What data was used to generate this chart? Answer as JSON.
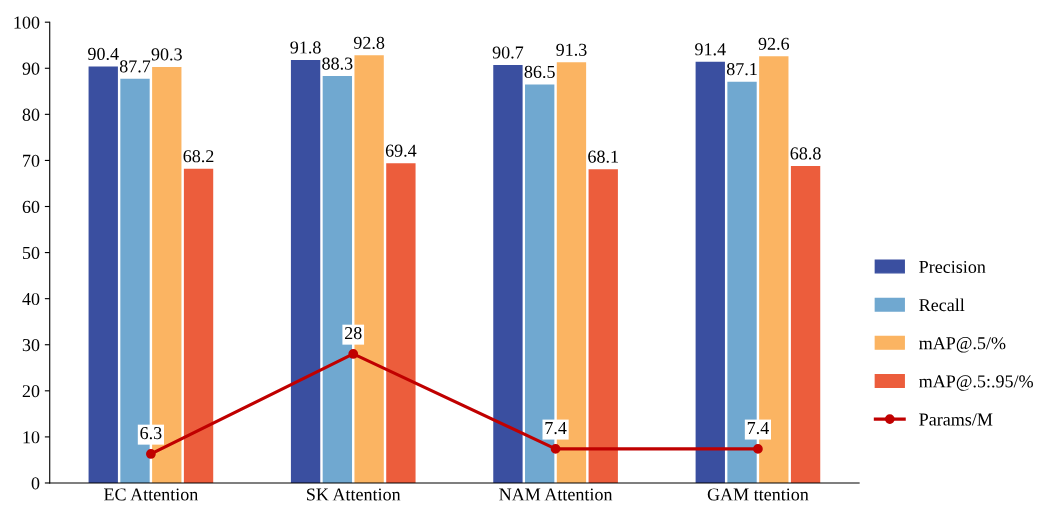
{
  "chart_data": {
    "type": "bar",
    "categories": [
      "EC Attention",
      "SK Attention",
      "NAM Attention",
      "GAM ttention"
    ],
    "series": [
      {
        "name": "Precision",
        "color": "#3a4fa0",
        "values": [
          90.4,
          91.8,
          90.7,
          91.4
        ]
      },
      {
        "name": "Recall",
        "color": "#70a8d0",
        "values": [
          87.7,
          88.3,
          86.5,
          87.1
        ]
      },
      {
        "name": "mAP@.5/%",
        "color": "#fbb462",
        "values": [
          90.3,
          92.8,
          91.3,
          92.6
        ]
      },
      {
        "name": "mAP@.5:.95/%",
        "color": "#ec5d3c",
        "values": [
          68.2,
          69.4,
          68.1,
          68.8
        ]
      },
      {
        "name": "Params/M",
        "type": "line",
        "color": "#c00000",
        "marker": "circle",
        "values": [
          6.3,
          28,
          7.4,
          7.4
        ]
      }
    ],
    "ylim": [
      0,
      100
    ],
    "yticks": [
      0,
      10,
      20,
      30,
      40,
      50,
      60,
      70,
      80,
      90,
      100
    ],
    "grid": false,
    "legend": "right",
    "data_labels": true
  }
}
